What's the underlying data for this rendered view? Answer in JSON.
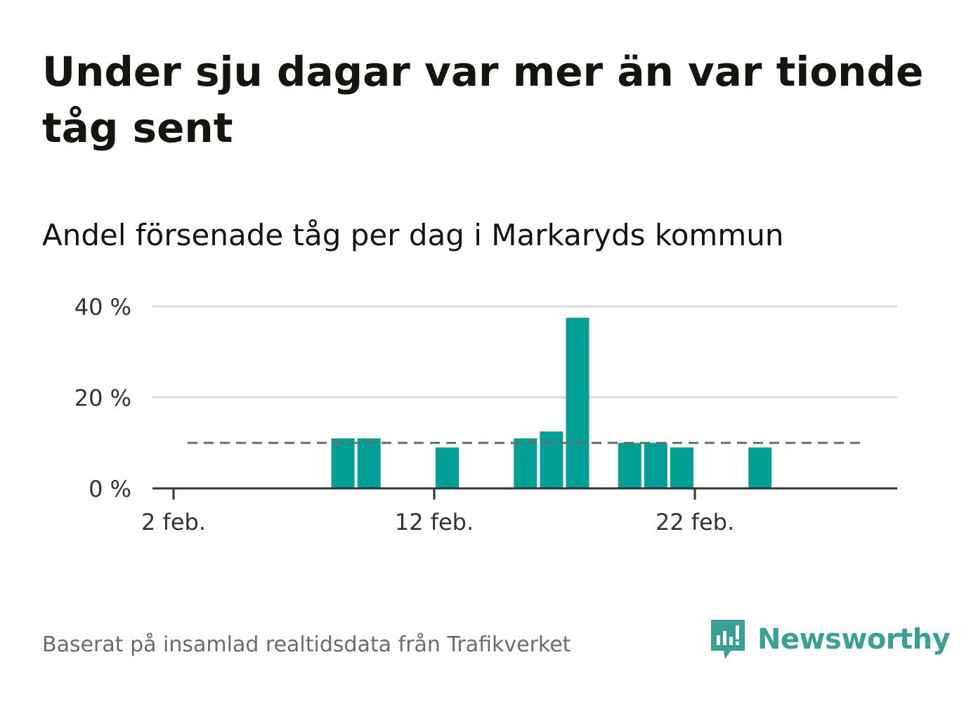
{
  "title": "Under sju dagar var mer än var tionde tåg sent",
  "subtitle": "Andel försenade tåg per dag i Markaryds kommun",
  "source": "Baserat på insamlad realtidsdata från Trafikverket",
  "brand": {
    "name": "Newsworthy",
    "icon": "newsworthy-logo-icon",
    "color": "#3a9f97"
  },
  "colors": {
    "bar": "#00a096",
    "reference_line": "#6b6b6b",
    "grid": "#dddddd",
    "axis": "#333333"
  },
  "chart_data": {
    "type": "bar",
    "x": [
      "2 feb.",
      "3 feb.",
      "4 feb.",
      "5 feb.",
      "6 feb.",
      "7 feb.",
      "8 feb.",
      "9 feb.",
      "10 feb.",
      "11 feb.",
      "12 feb.",
      "13 feb.",
      "14 feb.",
      "15 feb.",
      "16 feb.",
      "17 feb.",
      "18 feb.",
      "19 feb.",
      "20 feb.",
      "21 feb.",
      "22 feb.",
      "23 feb.",
      "24 feb.",
      "25 feb.",
      "26 feb.",
      "27 feb."
    ],
    "values": [
      0,
      0,
      0,
      0,
      0,
      0,
      11,
      11,
      0,
      0,
      9,
      0,
      0,
      11,
      12.5,
      37.5,
      0,
      10,
      10,
      9,
      0,
      0,
      9,
      0,
      0,
      0
    ],
    "y_ticks": [
      {
        "value": 0,
        "label": "0 %"
      },
      {
        "value": 20,
        "label": "20 %"
      },
      {
        "value": 40,
        "label": "40 %"
      }
    ],
    "x_ticks": [
      {
        "value": "2 feb.",
        "label": "2 feb."
      },
      {
        "value": "12 feb.",
        "label": "12 feb."
      },
      {
        "value": "22 feb.",
        "label": "22 feb."
      }
    ],
    "ylim": [
      0,
      40
    ],
    "reference_line": 10,
    "grid": true,
    "unit": "%"
  }
}
